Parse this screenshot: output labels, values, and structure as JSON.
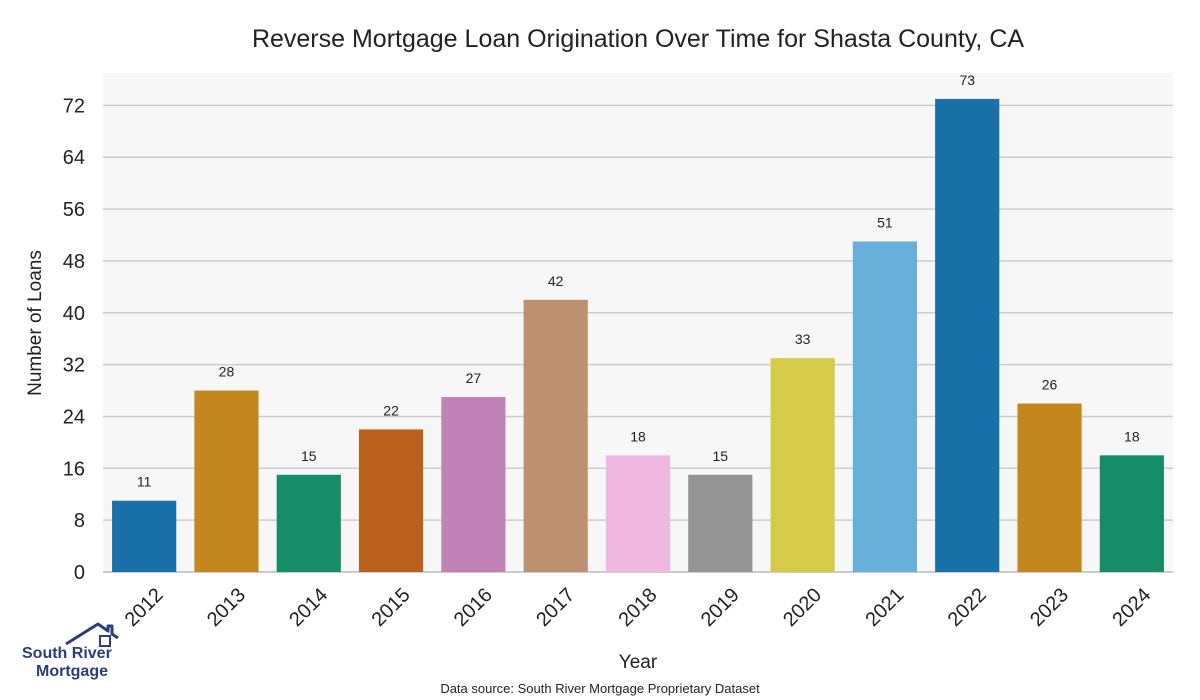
{
  "chart_data": {
    "type": "bar",
    "title": "Reverse Mortgage Loan Origination Over Time for Shasta County, CA",
    "xlabel": "Year",
    "ylabel": "Number of Loans",
    "categories": [
      "2012",
      "2013",
      "2014",
      "2015",
      "2016",
      "2017",
      "2018",
      "2019",
      "2020",
      "2021",
      "2022",
      "2023",
      "2024"
    ],
    "values": [
      11,
      28,
      15,
      22,
      27,
      42,
      18,
      15,
      33,
      51,
      73,
      26,
      18
    ],
    "colors": [
      "#1a70a8",
      "#c4871f",
      "#178c69",
      "#b8601d",
      "#c282b6",
      "#bc9070",
      "#f0b8e0",
      "#949494",
      "#d6cb48",
      "#66b0d9",
      "#1a70a8",
      "#c4871f",
      "#178c69"
    ],
    "yticks": [
      0,
      8,
      16,
      24,
      32,
      40,
      48,
      56,
      64,
      72
    ],
    "ylim": [
      0,
      77
    ],
    "grid": true,
    "background": "#f7f7f7",
    "grid_color": "#cccccc"
  },
  "footer": {
    "source": "Data source: South River Mortgage Proprietary Dataset"
  },
  "logo": {
    "line1": "South River",
    "line2": "Mortgage",
    "color": "#2b3d7a"
  }
}
